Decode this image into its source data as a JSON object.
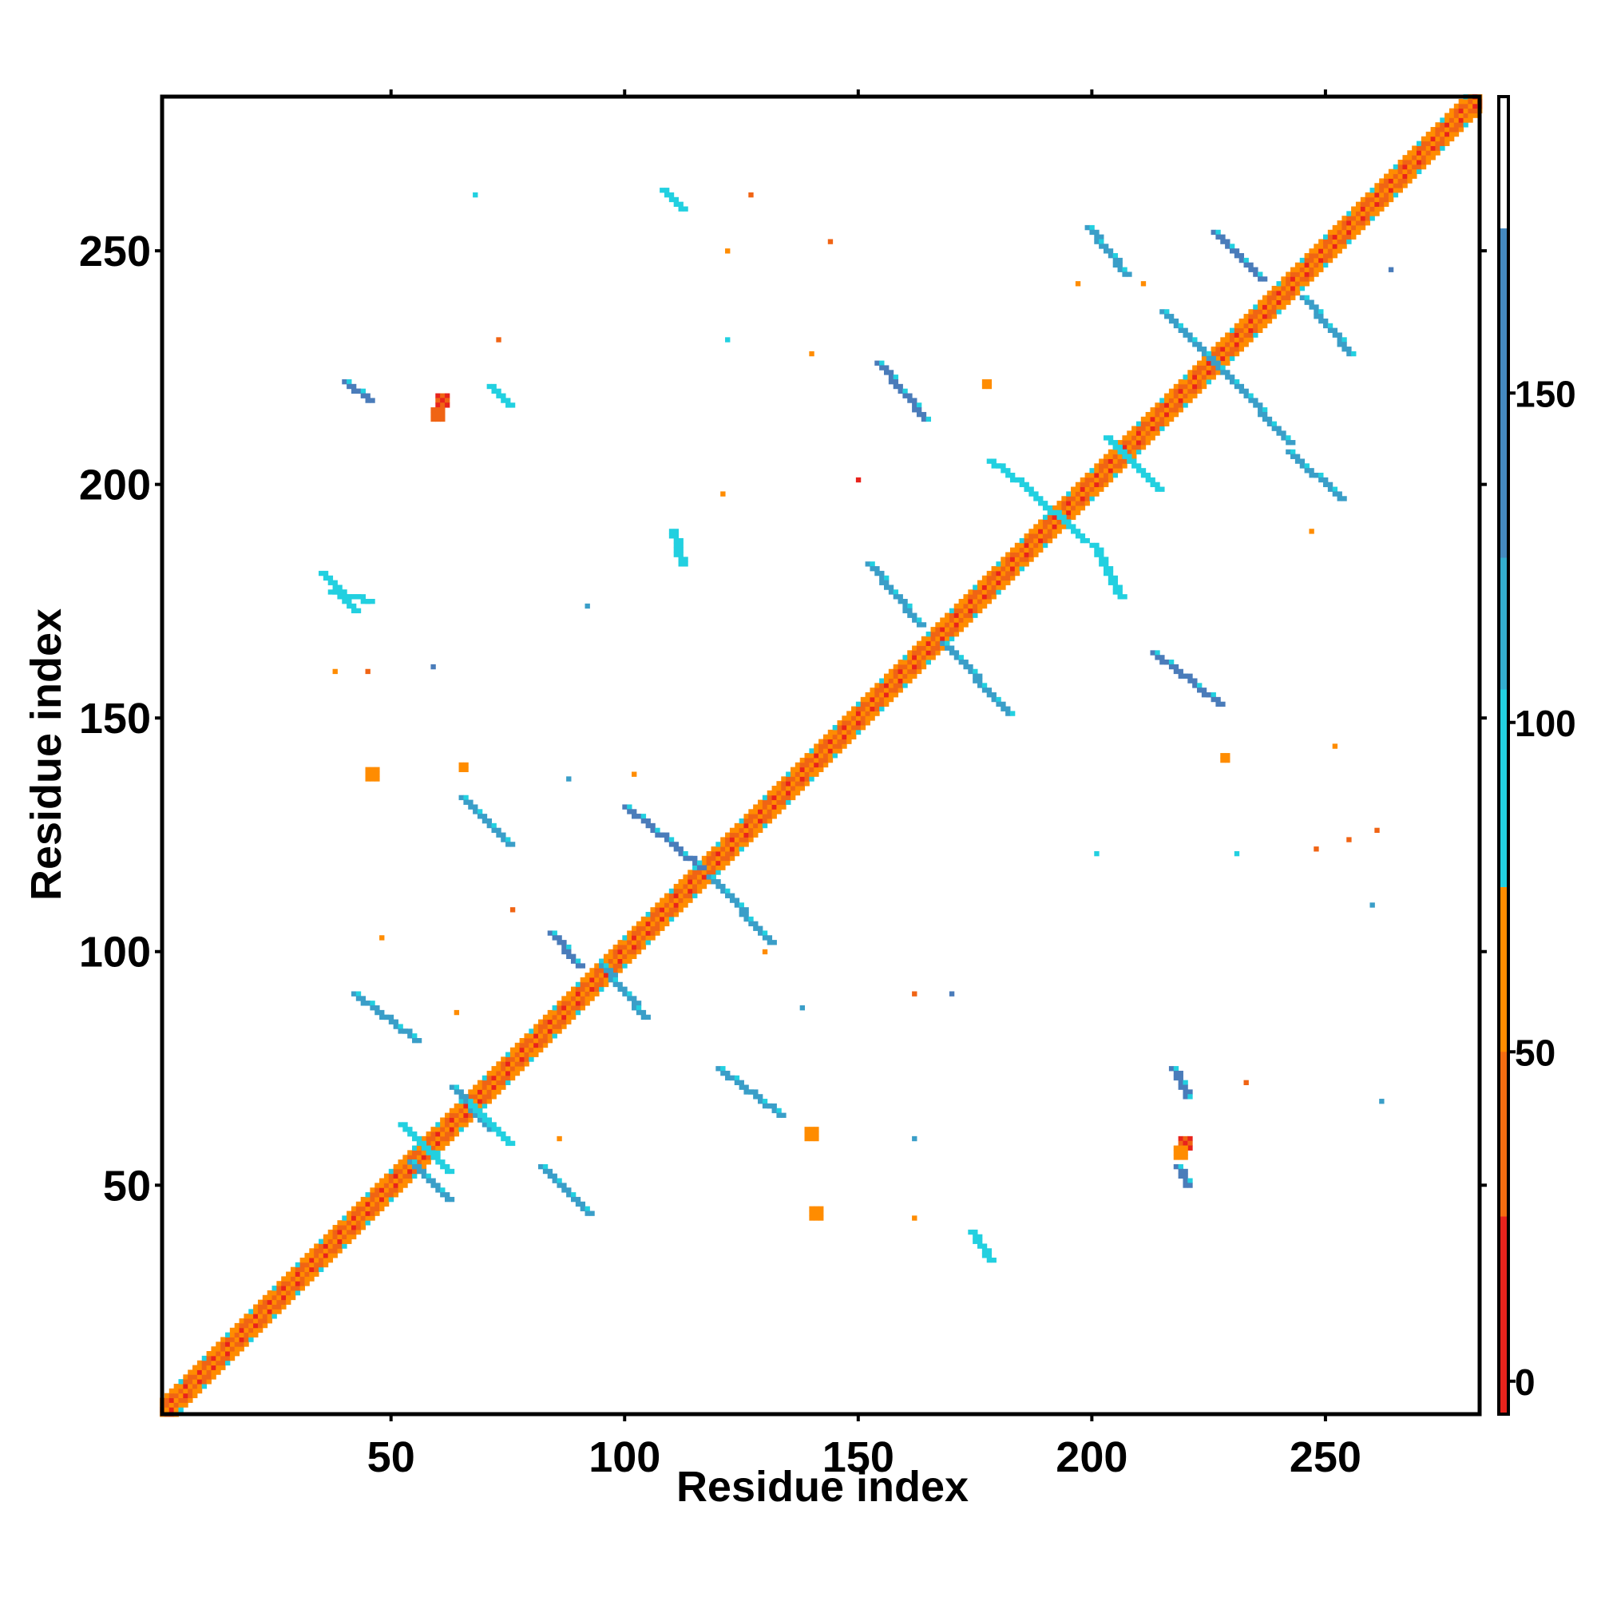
{
  "chart_data": {
    "type": "heatmap",
    "title": "",
    "xlabel": "Residue index",
    "ylabel": "Residue index",
    "xlim": [
      1,
      283
    ],
    "ylim": [
      1,
      283
    ],
    "x_ticks": [
      50,
      100,
      150,
      200,
      250
    ],
    "y_ticks": [
      50,
      100,
      150,
      200,
      250
    ],
    "grid": false,
    "colorbar": {
      "ticks": [
        0,
        50,
        100,
        150
      ],
      "range": [
        -5,
        195
      ],
      "bands": [
        {
          "from": -5,
          "to": 25,
          "color": "#e8231c"
        },
        {
          "from": 25,
          "to": 75,
          "color": "#ff8c00"
        },
        {
          "from": 75,
          "to": 175,
          "color": "#22d0e0"
        },
        {
          "from": 175,
          "to": 195,
          "color": "#ffffff"
        }
      ]
    },
    "colors": {
      "low": "#e8231c",
      "mid_low": "#f06414",
      "mid": "#ff8c00",
      "mid_high": "#22d0e0",
      "high": "#3a9ec8",
      "highest": "#4a7cba"
    },
    "diagonal_band": {
      "x": [
        1,
        283
      ],
      "half_width": 3
    },
    "contacts": [
      {
        "x": [
          52,
          62
        ],
        "y": [
          63,
          53
        ],
        "value": 120,
        "color": "mid_high"
      },
      {
        "x": [
          54,
          62
        ],
        "y": [
          55,
          47
        ],
        "value": 140,
        "color": "high"
      },
      {
        "x": [
          63,
          71
        ],
        "y": [
          71,
          62
        ],
        "value": 130,
        "color": "high"
      },
      {
        "x": [
          67,
          75
        ],
        "y": [
          67,
          59
        ],
        "value": 115,
        "color": "mid_high"
      },
      {
        "x": [
          42,
          55
        ],
        "y": [
          91,
          81
        ],
        "value": 135,
        "color": "high"
      },
      {
        "x": [
          82,
          92
        ],
        "y": [
          54,
          44
        ],
        "value": 130,
        "color": "high"
      },
      {
        "x": [
          84,
          90
        ],
        "y": [
          104,
          97
        ],
        "value": 140,
        "color": "highest"
      },
      {
        "x": [
          95,
          104
        ],
        "y": [
          97,
          86
        ],
        "value": 125,
        "color": "high"
      },
      {
        "x": [
          100,
          116
        ],
        "y": [
          131,
          118
        ],
        "value": 140,
        "color": "highest"
      },
      {
        "x": [
          118,
          131
        ],
        "y": [
          116,
          102
        ],
        "value": 130,
        "color": "high"
      },
      {
        "x": [
          65,
          75
        ],
        "y": [
          133,
          123
        ],
        "value": 135,
        "color": "high"
      },
      {
        "x": [
          120,
          133
        ],
        "y": [
          75,
          65
        ],
        "value": 130,
        "color": "high"
      },
      {
        "x": [
          152,
          163
        ],
        "y": [
          183,
          170
        ],
        "value": 135,
        "color": "high"
      },
      {
        "x": [
          168,
          182
        ],
        "y": [
          166,
          151
        ],
        "value": 135,
        "color": "high"
      },
      {
        "x": [
          154,
          164
        ],
        "y": [
          226,
          214
        ],
        "value": 140,
        "color": "highest"
      },
      {
        "x": [
          213,
          227
        ],
        "y": [
          164,
          153
        ],
        "value": 135,
        "color": "highest"
      },
      {
        "x": [
          199,
          207
        ],
        "y": [
          255,
          245
        ],
        "value": 135,
        "color": "high"
      },
      {
        "x": [
          226,
          236
        ],
        "y": [
          254,
          244
        ],
        "value": 140,
        "color": "highest"
      },
      {
        "x": [
          215,
          230
        ],
        "y": [
          237,
          222
        ],
        "value": 130,
        "color": "high"
      },
      {
        "x": [
          230,
          242
        ],
        "y": [
          222,
          209
        ],
        "value": 130,
        "color": "high"
      },
      {
        "x": [
          245,
          255
        ],
        "y": [
          240,
          228
        ],
        "value": 135,
        "color": "high"
      },
      {
        "x": [
          242,
          253
        ],
        "y": [
          207,
          197
        ],
        "value": 130,
        "color": "high"
      },
      {
        "x": [
          186,
          198
        ],
        "y": [
          199,
          188
        ],
        "value": 115,
        "color": "mid_high"
      },
      {
        "x": [
          178,
          186
        ],
        "y": [
          205,
          199
        ],
        "value": 110,
        "color": "mid_high"
      },
      {
        "x": [
          200,
          206
        ],
        "y": [
          187,
          176
        ],
        "value": 110,
        "color": "mid_high"
      },
      {
        "x": [
          203,
          214
        ],
        "y": [
          210,
          199
        ],
        "value": 120,
        "color": "mid_high"
      },
      {
        "x": [
          35,
          42
        ],
        "y": [
          181,
          173
        ],
        "value": 115,
        "color": "mid_high"
      },
      {
        "x": [
          37,
          45
        ],
        "y": [
          177,
          175
        ],
        "value": 105,
        "color": "mid_high"
      },
      {
        "x": [
          174,
          178
        ],
        "y": [
          40,
          34
        ],
        "value": 100,
        "color": "mid_high"
      },
      {
        "x": [
          217,
          220
        ],
        "y": [
          75,
          69
        ],
        "value": 140,
        "color": "highest"
      },
      {
        "x": [
          71,
          75
        ],
        "y": [
          221,
          217
        ],
        "value": 115,
        "color": "mid_high"
      },
      {
        "x": [
          218,
          220
        ],
        "y": [
          54,
          50
        ],
        "value": 150,
        "color": "highest"
      },
      {
        "x": [
          40,
          45
        ],
        "y": [
          222,
          218
        ],
        "value": 150,
        "color": "highest"
      },
      {
        "x": [
          108,
          112
        ],
        "y": [
          263,
          259
        ],
        "value": 110,
        "color": "mid_high"
      },
      {
        "x": [
          110,
          112
        ],
        "y": [
          190,
          183
        ],
        "value": 120,
        "color": "mid_high"
      }
    ],
    "spots": [
      {
        "x": 60,
        "y": 219,
        "value": 10,
        "size": 3,
        "color": "low"
      },
      {
        "x": 59,
        "y": 216,
        "value": 30,
        "size": 3,
        "color": "mid_low"
      },
      {
        "x": 219,
        "y": 60,
        "value": 10,
        "size": 3,
        "color": "low"
      },
      {
        "x": 218,
        "y": 58,
        "value": 30,
        "size": 3,
        "color": "mid"
      },
      {
        "x": 140,
        "y": 45,
        "value": 55,
        "size": 3,
        "color": "mid"
      },
      {
        "x": 139,
        "y": 62,
        "value": 55,
        "size": 3,
        "color": "mid"
      },
      {
        "x": 45,
        "y": 139,
        "value": 55,
        "size": 3,
        "color": "mid"
      },
      {
        "x": 65,
        "y": 140,
        "value": 60,
        "size": 2,
        "color": "mid"
      },
      {
        "x": 228,
        "y": 142,
        "value": 55,
        "size": 2,
        "color": "mid"
      },
      {
        "x": 252,
        "y": 144,
        "value": 55,
        "size": 1,
        "color": "mid"
      },
      {
        "x": 121,
        "y": 198,
        "value": 60,
        "size": 1,
        "color": "mid"
      },
      {
        "x": 102,
        "y": 138,
        "value": 60,
        "size": 1,
        "color": "mid"
      },
      {
        "x": 130,
        "y": 100,
        "value": 60,
        "size": 1,
        "color": "mid"
      },
      {
        "x": 162,
        "y": 91,
        "value": 40,
        "size": 1,
        "color": "mid_low"
      },
      {
        "x": 177,
        "y": 222,
        "value": 60,
        "size": 2,
        "color": "mid"
      },
      {
        "x": 73,
        "y": 231,
        "value": 50,
        "size": 1,
        "color": "mid_low"
      },
      {
        "x": 122,
        "y": 250,
        "value": 60,
        "size": 1,
        "color": "mid"
      },
      {
        "x": 127,
        "y": 262,
        "value": 50,
        "size": 1,
        "color": "mid_low"
      },
      {
        "x": 144,
        "y": 252,
        "value": 50,
        "size": 1,
        "color": "mid_low"
      },
      {
        "x": 140,
        "y": 228,
        "value": 55,
        "size": 1,
        "color": "mid"
      },
      {
        "x": 233,
        "y": 72,
        "value": 40,
        "size": 1,
        "color": "mid_low"
      },
      {
        "x": 255,
        "y": 124,
        "value": 40,
        "size": 1,
        "color": "mid_low"
      },
      {
        "x": 261,
        "y": 126,
        "value": 40,
        "size": 1,
        "color": "mid_low"
      },
      {
        "x": 248,
        "y": 122,
        "value": 40,
        "size": 1,
        "color": "mid_low"
      },
      {
        "x": 45,
        "y": 160,
        "value": 50,
        "size": 1,
        "color": "mid_low"
      },
      {
        "x": 38,
        "y": 160,
        "value": 60,
        "size": 1,
        "color": "mid"
      },
      {
        "x": 59,
        "y": 161,
        "value": 140,
        "size": 1,
        "color": "highest"
      },
      {
        "x": 92,
        "y": 174,
        "value": 135,
        "size": 1,
        "color": "high"
      },
      {
        "x": 201,
        "y": 121,
        "value": 110,
        "size": 1,
        "color": "mid_high"
      },
      {
        "x": 231,
        "y": 121,
        "value": 110,
        "size": 1,
        "color": "mid_high"
      },
      {
        "x": 260,
        "y": 110,
        "value": 140,
        "size": 1,
        "color": "high"
      },
      {
        "x": 262,
        "y": 68,
        "value": 120,
        "size": 1,
        "color": "high"
      },
      {
        "x": 138,
        "y": 88,
        "value": 140,
        "size": 1,
        "color": "high"
      },
      {
        "x": 88,
        "y": 137,
        "value": 135,
        "size": 1,
        "color": "high"
      },
      {
        "x": 162,
        "y": 60,
        "value": 140,
        "size": 1,
        "color": "high"
      },
      {
        "x": 48,
        "y": 103,
        "value": 60,
        "size": 1,
        "color": "mid"
      },
      {
        "x": 64,
        "y": 87,
        "value": 60,
        "size": 1,
        "color": "mid"
      },
      {
        "x": 122,
        "y": 231,
        "value": 110,
        "size": 1,
        "color": "mid_high"
      },
      {
        "x": 247,
        "y": 190,
        "value": 60,
        "size": 1,
        "color": "mid"
      },
      {
        "x": 150,
        "y": 201,
        "value": 10,
        "size": 1,
        "color": "low"
      },
      {
        "x": 170,
        "y": 91,
        "value": 140,
        "size": 1,
        "color": "highest"
      },
      {
        "x": 76,
        "y": 109,
        "value": 50,
        "size": 1,
        "color": "mid_low"
      },
      {
        "x": 86,
        "y": 60,
        "value": 60,
        "size": 1,
        "color": "mid"
      },
      {
        "x": 162,
        "y": 43,
        "value": 55,
        "size": 1,
        "color": "mid"
      },
      {
        "x": 197,
        "y": 243,
        "value": 60,
        "size": 1,
        "color": "mid"
      },
      {
        "x": 211,
        "y": 243,
        "value": 60,
        "size": 1,
        "color": "mid"
      },
      {
        "x": 264,
        "y": 246,
        "value": 140,
        "size": 1,
        "color": "highest"
      },
      {
        "x": 68,
        "y": 262,
        "value": 110,
        "size": 1,
        "color": "mid_high"
      }
    ]
  }
}
